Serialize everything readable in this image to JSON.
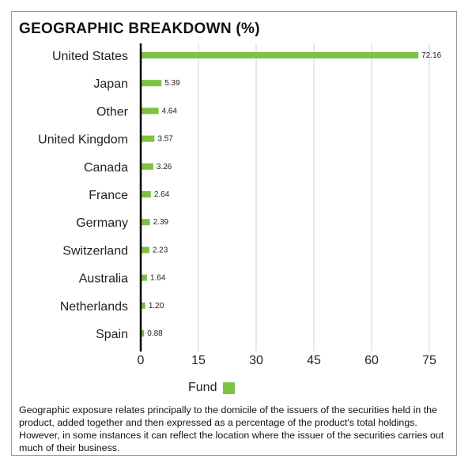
{
  "title": "GEOGRAPHIC BREAKDOWN (%)",
  "legend": {
    "label": "Fund",
    "color": "#7dc242"
  },
  "note": "Geographic exposure relates principally to the domicile of the issuers of the securities held in the product, added together and then expressed as a percentage of the product's total holdings. However, in some instances it can reflect the location where the issuer of the securities carries out much of their business.",
  "chart_data": {
    "type": "bar",
    "orientation": "horizontal",
    "title": "GEOGRAPHIC BREAKDOWN (%)",
    "categories": [
      "United States",
      "Japan",
      "Other",
      "United Kingdom",
      "Canada",
      "France",
      "Germany",
      "Switzerland",
      "Australia",
      "Netherlands",
      "Spain"
    ],
    "series": [
      {
        "name": "Fund",
        "values": [
          72.16,
          5.39,
          4.64,
          3.57,
          3.26,
          2.64,
          2.39,
          2.23,
          1.64,
          1.2,
          0.88
        ],
        "color": "#7dc242"
      }
    ],
    "value_labels": [
      "72.16",
      "5.39",
      "4.64",
      "3.57",
      "3.26",
      "2.64",
      "2.39",
      "2.23",
      "1.64",
      "1.20",
      "0.88"
    ],
    "xlim": [
      0,
      75
    ],
    "xticks": [
      0,
      15,
      30,
      45,
      60,
      75
    ],
    "xtick_labels": [
      "0",
      "15",
      "30",
      "45",
      "60",
      "75"
    ],
    "grid": true,
    "legend_position": "bottom-center"
  }
}
